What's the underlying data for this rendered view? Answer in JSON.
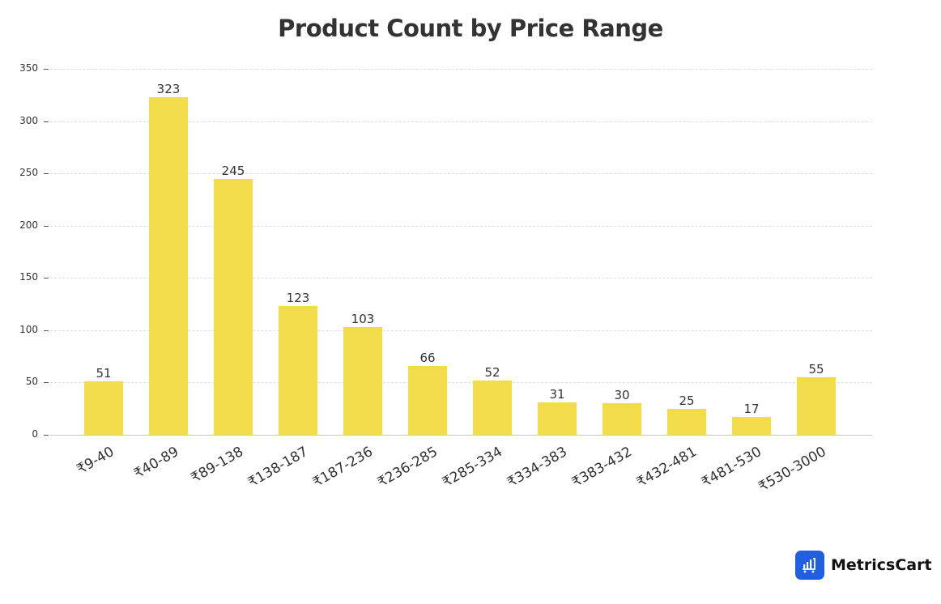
{
  "title": "Product Count by Price Range",
  "brand": {
    "name": "MetricsCart",
    "icon": "chart-cart-icon",
    "color": "#1f5fe0"
  },
  "chart_data": {
    "type": "bar",
    "title": "Product Count by Price Range",
    "xlabel": "",
    "ylabel": "",
    "categories": [
      "₹9-40",
      "₹40-89",
      "₹89-138",
      "₹138-187",
      "₹187-236",
      "₹236-285",
      "₹285-334",
      "₹334-383",
      "₹383-432",
      "₹432-481",
      "₹481-530",
      "₹530-3000"
    ],
    "values": [
      51,
      323,
      245,
      123,
      103,
      66,
      52,
      31,
      30,
      25,
      17,
      55
    ],
    "ylim": [
      0,
      350
    ],
    "yticks": [
      0,
      50,
      100,
      150,
      200,
      250,
      300,
      350
    ],
    "grid": true,
    "bar_color": "#f2dc4a",
    "data_labels": true,
    "legend": null
  }
}
